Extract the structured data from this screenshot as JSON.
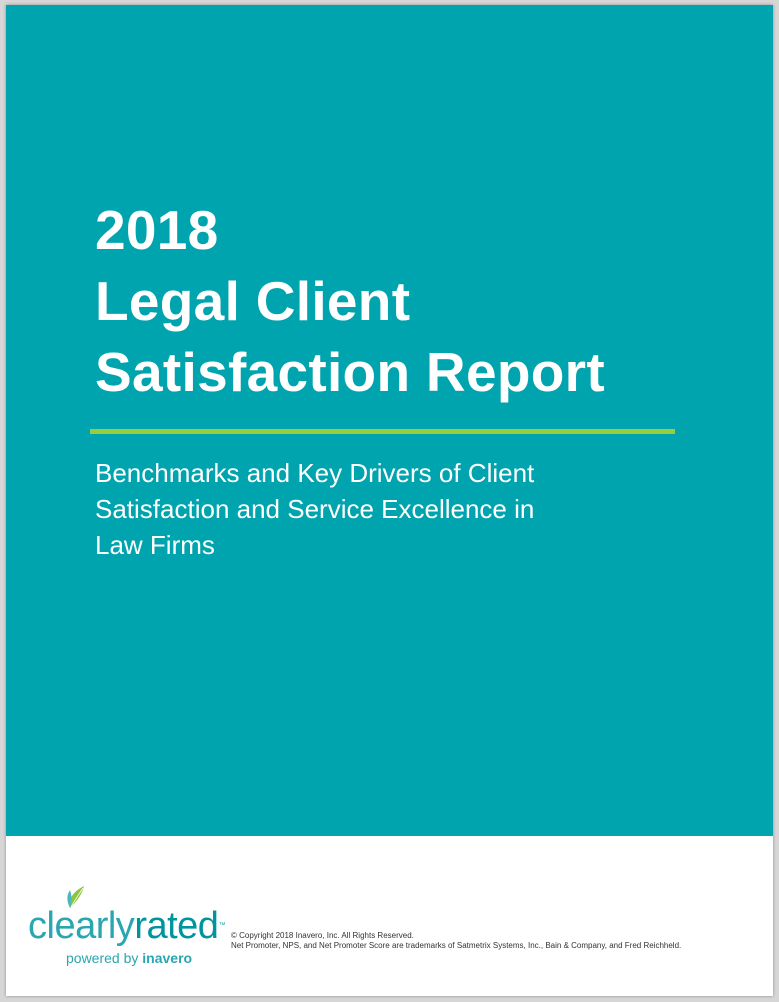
{
  "cover": {
    "title_lines": [
      "2018",
      "Legal Client",
      "Satisfaction Report"
    ],
    "subtitle_lines": [
      "Benchmarks and Key Drivers of Client",
      "Satisfaction and Service Excellence in",
      "Law Firms"
    ]
  },
  "logo": {
    "word_part1": "clearly",
    "word_part2": "rated",
    "trademark": "™",
    "powered_prefix": "powered by",
    "powered_brand": "inavero"
  },
  "legal": {
    "copyright": "© Copyright 2018 Inavero, Inc. All Rights Reserved.",
    "trademark_note": "Net Promoter, NPS, and Net Promoter Score are trademarks of Satmetrix Systems, Inc., Bain & Company, and Fred Reichheld."
  },
  "colors": {
    "cover_background": "#00a4ae",
    "accent_rule": "#9ccc3c",
    "logo_teal": "#2aa6b0",
    "leaf_green": "#8cc63f"
  },
  "icons": {
    "logo_mark": "leaf-sprout-icon"
  }
}
